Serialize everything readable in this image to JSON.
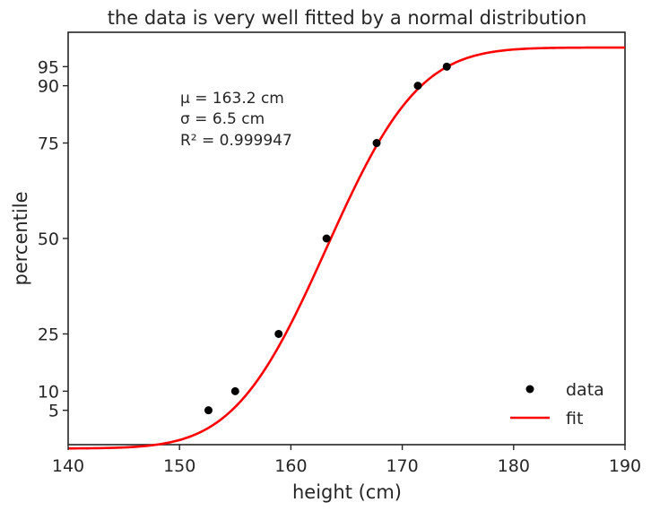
{
  "chart_data": {
    "type": "scatter",
    "title": "the data is very well fitted by a normal distribution",
    "xlabel": "height (cm)",
    "ylabel": "percentile",
    "xlim": [
      140,
      190
    ],
    "ylim": [
      -4,
      104
    ],
    "xticks": [
      140,
      150,
      160,
      170,
      180,
      190
    ],
    "yticks": [
      5,
      10,
      25,
      50,
      75,
      90,
      95
    ],
    "grid": false,
    "legend_position": "lower-right",
    "series": [
      {
        "name": "data",
        "kind": "points",
        "color": "#000000",
        "x": [
          152.6,
          155.0,
          158.9,
          163.2,
          167.7,
          171.4,
          174.0
        ],
        "y": [
          5,
          10,
          25,
          50,
          75,
          90,
          95
        ]
      },
      {
        "name": "fit",
        "kind": "line",
        "color": "#ff0000",
        "model": "normal_cdf",
        "mu": 163.2,
        "sigma": 6.5,
        "offset": -5,
        "scale": 105
      }
    ],
    "annotation": {
      "mu_label": "μ = 163.2 cm",
      "sigma_label": "σ = 6.5 cm",
      "r2_label": "R² = 0.999947"
    }
  }
}
